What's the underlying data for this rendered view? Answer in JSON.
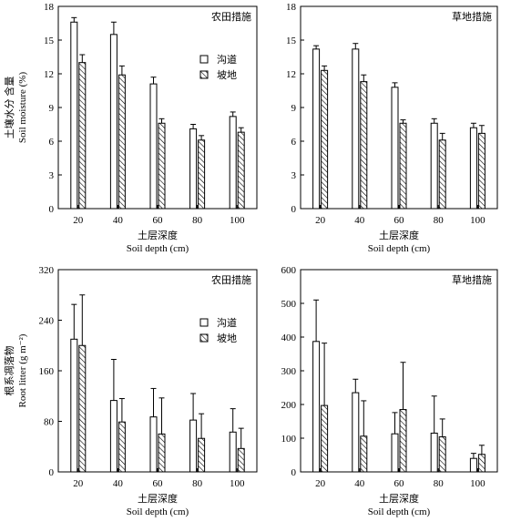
{
  "legend": {
    "gully": "沟道",
    "slope": "坡地"
  },
  "chart_data": [
    {
      "type": "bar",
      "title": "农田措施",
      "xlabel_zh": "土层深度",
      "xlabel_en": "Soil depth (cm)",
      "ylabel_zh": "土壤水分 含量",
      "ylabel_en": "Soil moisture (%)",
      "categories": [
        "20",
        "40",
        "60",
        "80",
        "100"
      ],
      "ylim": [
        0,
        18
      ],
      "yticks": [
        0,
        3,
        6,
        9,
        12,
        15,
        18
      ],
      "legend_position": "upper-right",
      "series": [
        {
          "name": "沟道",
          "pattern": "open",
          "values": [
            16.6,
            15.5,
            11.1,
            7.1,
            8.2
          ],
          "errors": [
            0.4,
            1.1,
            0.6,
            0.4,
            0.4
          ]
        },
        {
          "name": "坡地",
          "pattern": "hatched",
          "values": [
            13.0,
            11.9,
            7.6,
            6.1,
            6.8
          ],
          "errors": [
            0.7,
            0.8,
            0.4,
            0.4,
            0.4
          ]
        }
      ]
    },
    {
      "type": "bar",
      "title": "草地措施",
      "xlabel_zh": "土层深度",
      "xlabel_en": "Soil depth (cm)",
      "categories": [
        "20",
        "40",
        "60",
        "80",
        "100"
      ],
      "ylim": [
        0,
        18
      ],
      "yticks": [
        0,
        3,
        6,
        9,
        12,
        15,
        18
      ],
      "series": [
        {
          "name": "沟道",
          "pattern": "open",
          "values": [
            14.2,
            14.2,
            10.8,
            7.6,
            7.2
          ],
          "errors": [
            0.3,
            0.5,
            0.4,
            0.4,
            0.4
          ]
        },
        {
          "name": "坡地",
          "pattern": "hatched",
          "values": [
            12.3,
            11.3,
            7.6,
            6.1,
            6.7
          ],
          "errors": [
            0.4,
            0.6,
            0.3,
            0.6,
            0.7
          ]
        }
      ]
    },
    {
      "type": "bar",
      "title": "农田措施",
      "xlabel_zh": "土层深度",
      "xlabel_en": "Soil depth (cm)",
      "ylabel_zh": "根系凋落物",
      "ylabel_en": "Root litter (g m⁻²)",
      "categories": [
        "20",
        "40",
        "60",
        "80",
        "100"
      ],
      "ylim": [
        0,
        320
      ],
      "yticks": [
        0,
        80,
        160,
        240,
        320
      ],
      "legend_position": "upper-right",
      "series": [
        {
          "name": "沟道",
          "pattern": "open",
          "values": [
            210,
            113,
            87,
            82,
            63
          ],
          "errors": [
            55,
            65,
            45,
            42,
            37
          ]
        },
        {
          "name": "坡地",
          "pattern": "hatched",
          "values": [
            200,
            79,
            60,
            53,
            37
          ],
          "errors": [
            80,
            37,
            57,
            39,
            32
          ]
        }
      ]
    },
    {
      "type": "bar",
      "title": "草地措施",
      "xlabel_zh": "土层深度",
      "xlabel_en": "Soil depth (cm)",
      "categories": [
        "20",
        "40",
        "60",
        "80",
        "100"
      ],
      "ylim": [
        0,
        600
      ],
      "yticks": [
        0,
        100,
        200,
        300,
        400,
        500,
        600
      ],
      "series": [
        {
          "name": "沟道",
          "pattern": "open",
          "values": [
            387,
            235,
            113,
            115,
            40
          ],
          "errors": [
            123,
            40,
            63,
            110,
            15
          ]
        },
        {
          "name": "坡地",
          "pattern": "hatched",
          "values": [
            197,
            106,
            185,
            104,
            52
          ],
          "errors": [
            185,
            105,
            140,
            53,
            27
          ]
        }
      ]
    }
  ]
}
